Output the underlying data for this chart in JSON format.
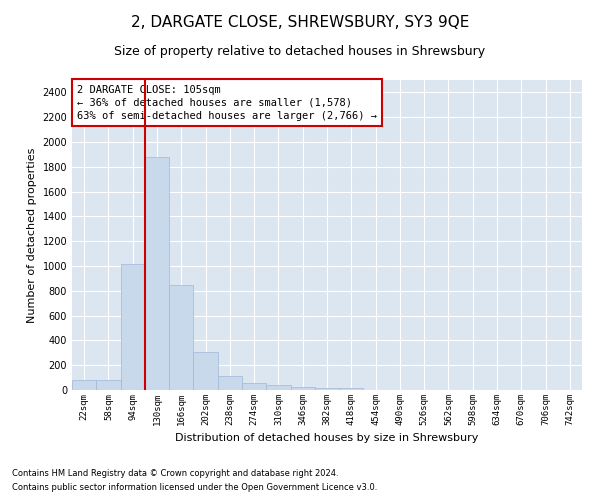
{
  "title": "2, DARGATE CLOSE, SHREWSBURY, SY3 9QE",
  "subtitle": "Size of property relative to detached houses in Shrewsbury",
  "xlabel": "Distribution of detached houses by size in Shrewsbury",
  "ylabel": "Number of detached properties",
  "footnote1": "Contains HM Land Registry data © Crown copyright and database right 2024.",
  "footnote2": "Contains public sector information licensed under the Open Government Licence v3.0.",
  "annotation_title": "2 DARGATE CLOSE: 105sqm",
  "annotation_line1": "← 36% of detached houses are smaller (1,578)",
  "annotation_line2": "63% of semi-detached houses are larger (2,766) →",
  "bar_color": "#c9d9ec",
  "bar_edgecolor": "#a0b8d8",
  "vline_color": "#cc0000",
  "categories": [
    "22sqm",
    "58sqm",
    "94sqm",
    "130sqm",
    "166sqm",
    "202sqm",
    "238sqm",
    "274sqm",
    "310sqm",
    "346sqm",
    "382sqm",
    "418sqm",
    "454sqm",
    "490sqm",
    "526sqm",
    "562sqm",
    "598sqm",
    "634sqm",
    "670sqm",
    "706sqm",
    "742sqm"
  ],
  "values": [
    80,
    80,
    1020,
    1880,
    850,
    310,
    110,
    55,
    40,
    25,
    15,
    15,
    0,
    0,
    0,
    0,
    0,
    0,
    0,
    0,
    0
  ],
  "ylim": [
    0,
    2500
  ],
  "yticks": [
    0,
    200,
    400,
    600,
    800,
    1000,
    1200,
    1400,
    1600,
    1800,
    2000,
    2200,
    2400
  ],
  "grid_color": "#ffffff",
  "bg_color": "#dce6f1",
  "title_fontsize": 11,
  "subtitle_fontsize": 9,
  "xlabel_fontsize": 8,
  "ylabel_fontsize": 8,
  "annotation_box_color": "#cc0000",
  "annotation_fontsize": 7.5,
  "footnote_fontsize": 6
}
